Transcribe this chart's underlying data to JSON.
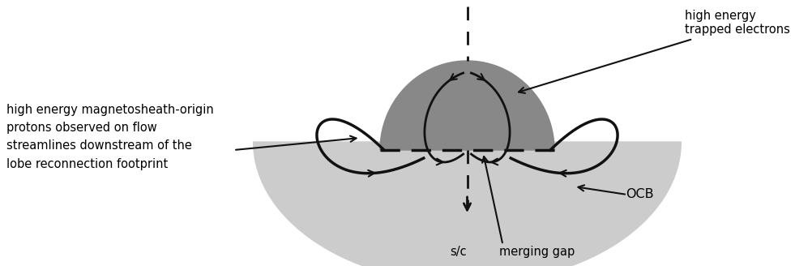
{
  "fig_width": 10.03,
  "fig_height": 3.28,
  "dpi": 100,
  "bg_color": "#ffffff",
  "light_gray": "#cccccc",
  "dark_gray": "#888888",
  "line_color": "#111111",
  "labels": {
    "high_energy_electrons": "high energy\ntrapped electrons",
    "protons": "high energy magnetosheath-origin\nprotons observed on flow\nstreamlines downstream of the\nlobe reconnection footprint",
    "ocb": "OCB",
    "merging_gap": "merging gap",
    "sc": "s/c"
  }
}
